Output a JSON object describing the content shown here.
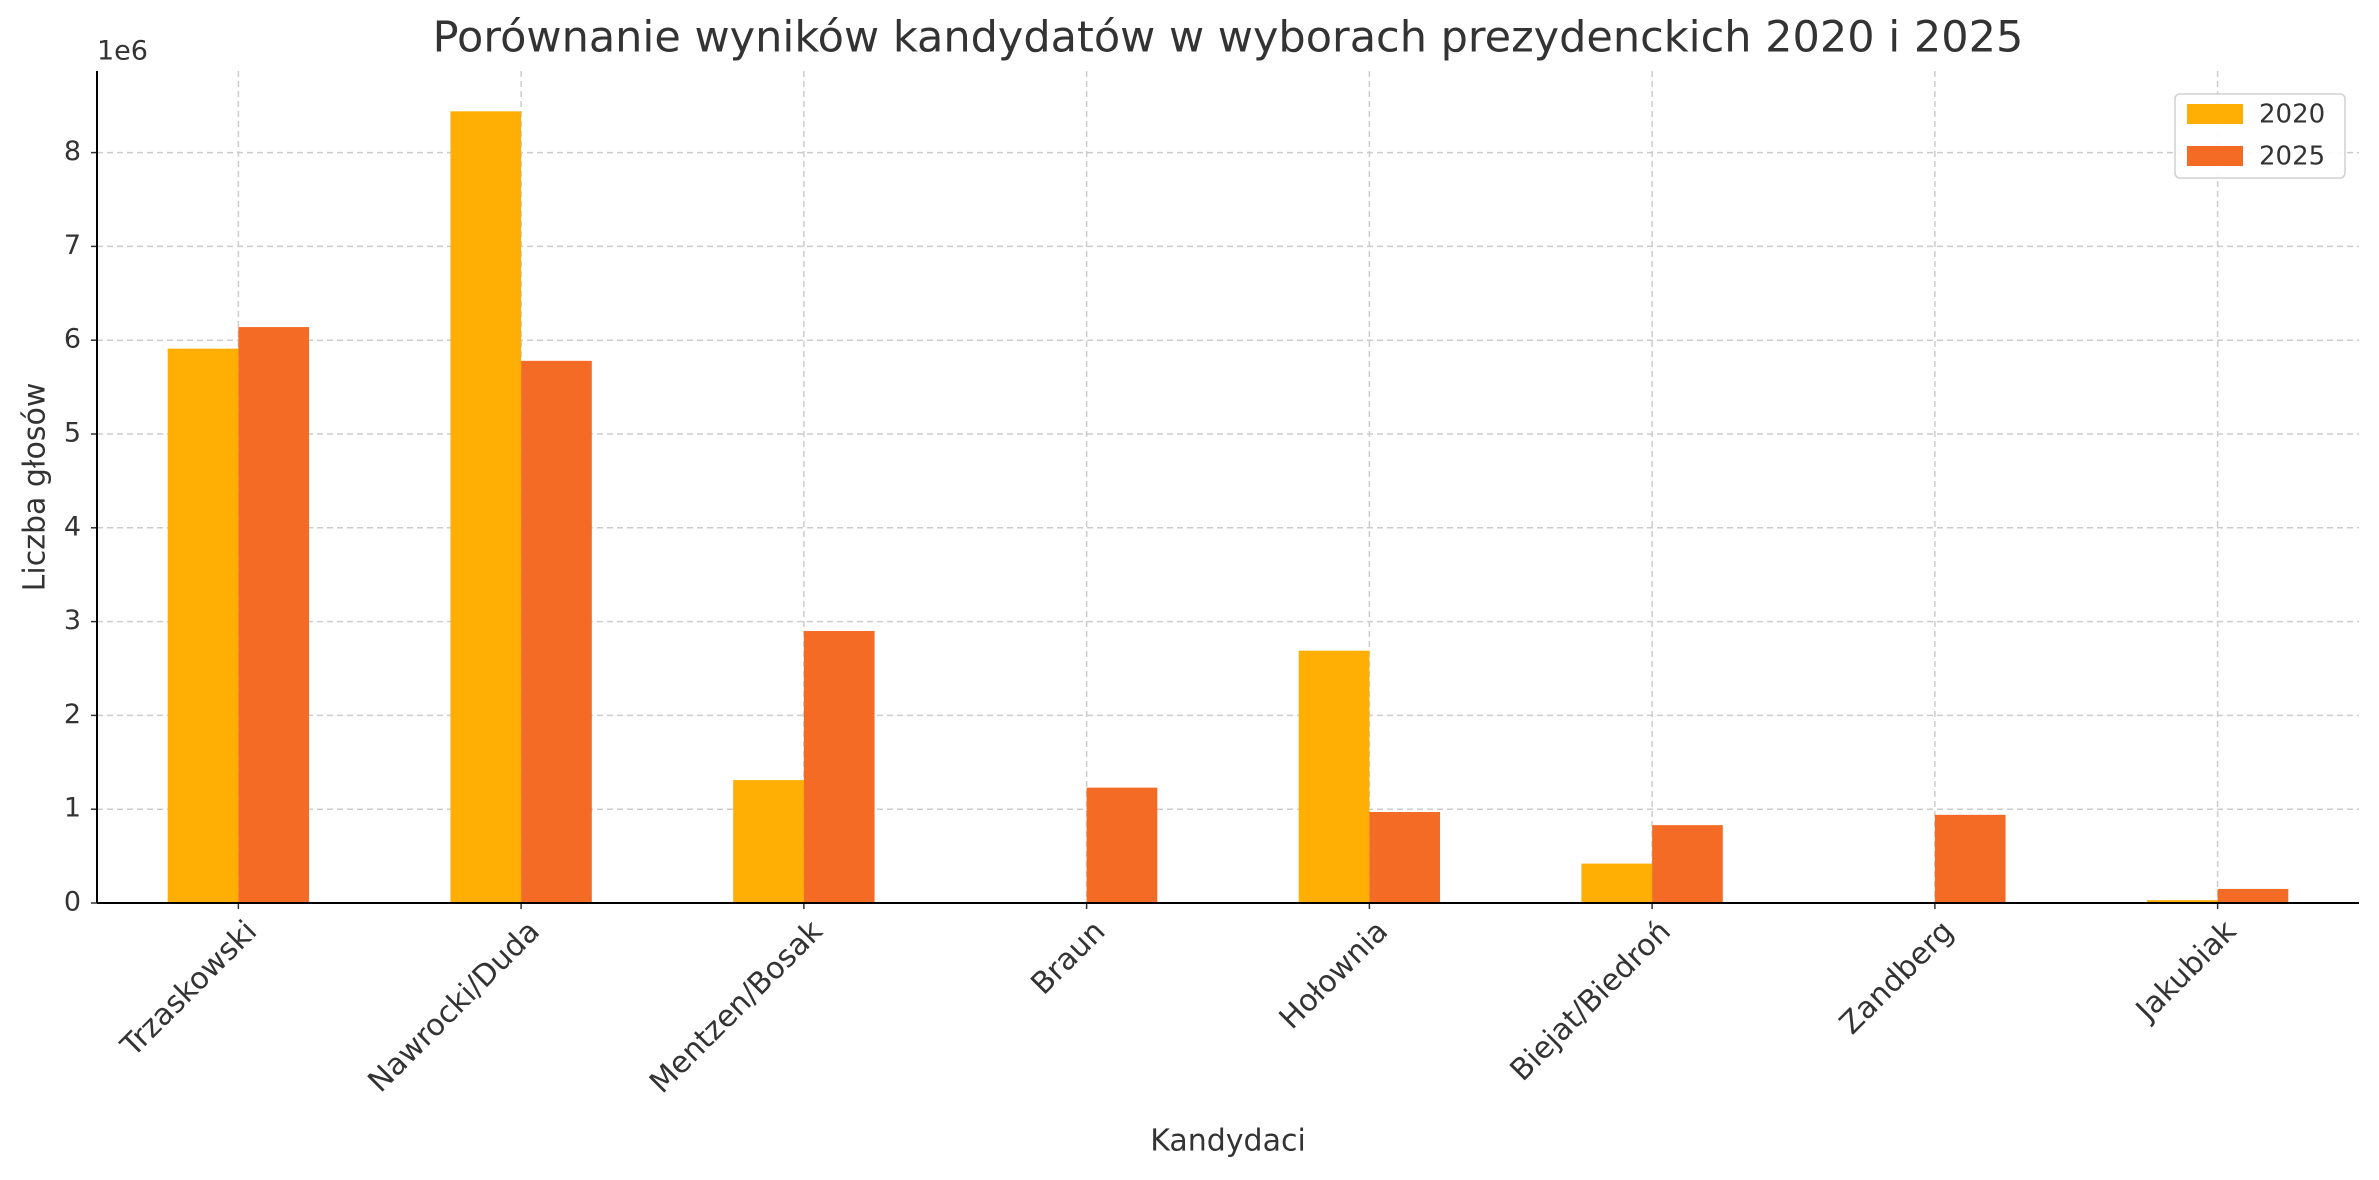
{
  "chart_data": {
    "type": "bar",
    "title": "Porównanie wyników kandydatów w wyborach prezydenckich 2020 i 2025",
    "x_label": "Kandydaci",
    "y_label": "Liczba głosów",
    "y_offset_label": "1e6",
    "categories": [
      "Trzaskowski",
      "Nawrocki/Duda",
      "Mentzen/Bosak",
      "Braun",
      "Hołownia",
      "Biejat/Biedroń",
      "Zandberg",
      "Jakubiak"
    ],
    "series": [
      {
        "name": "2020",
        "color": "#ffae03",
        "values": [
          5.91,
          8.44,
          1.31,
          0,
          2.69,
          0.42,
          0,
          0.03
        ]
      },
      {
        "name": "2025",
        "color": "#f36b25",
        "values": [
          6.14,
          5.78,
          2.9,
          1.23,
          0.97,
          0.83,
          0.94,
          0.15
        ]
      }
    ],
    "ylim": [
      0,
      8.87
    ],
    "yticks": [
      0,
      1,
      2,
      3,
      4,
      5,
      6,
      7,
      8
    ],
    "grid": true,
    "legend": "upper right"
  }
}
